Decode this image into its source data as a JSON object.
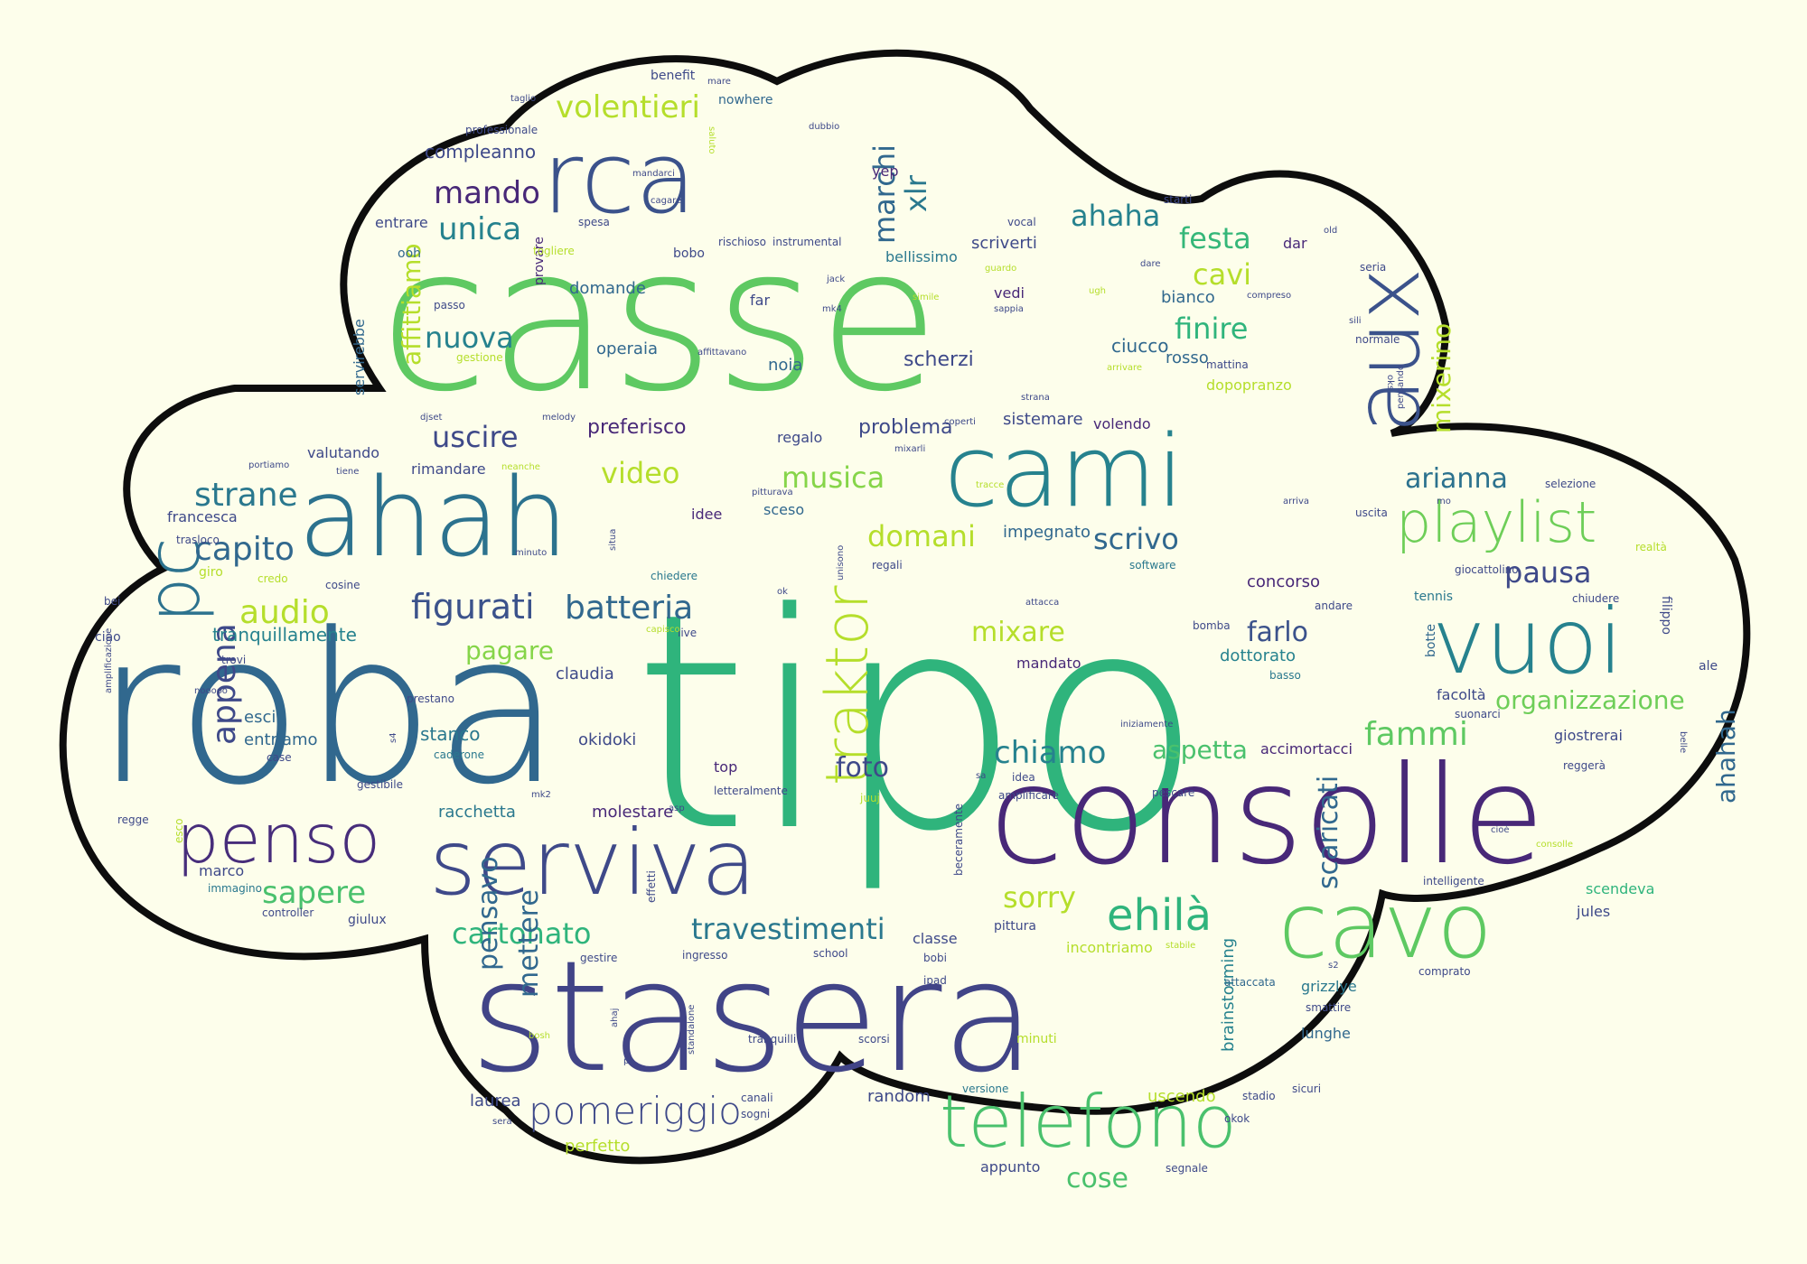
{
  "cloud": {
    "background": "#fdfeeb",
    "outline_color": "#0d0d0d",
    "palette": [
      "#31688e",
      "#35b779",
      "#6ece58",
      "#b5de2b",
      "#26828e",
      "#1f9e89",
      "#3e4989",
      "#482878",
      "#440154"
    ]
  },
  "words": [
    {
      "text": "tipo",
      "color": "#2fb47c"
    },
    {
      "text": "roba",
      "color": "#31688e"
    },
    {
      "text": "casse",
      "color": "#5ec962"
    },
    {
      "text": "stasera",
      "color": "#414487"
    },
    {
      "text": "consolle",
      "color": "#482878"
    },
    {
      "text": "serviva",
      "color": "#3e4989"
    },
    {
      "text": "ahah",
      "color": "#2c728e"
    },
    {
      "text": "rca",
      "color": "#3b528b"
    },
    {
      "text": "cami",
      "color": "#26828e"
    },
    {
      "text": "aux",
      "color": "#3b528b"
    },
    {
      "text": "vuoi",
      "color": "#26828e"
    },
    {
      "text": "cavo",
      "color": "#5ec962"
    },
    {
      "text": "telefono",
      "color": "#4ac16d"
    },
    {
      "text": "penso",
      "color": "#472d7b"
    },
    {
      "text": "pc",
      "color": "#2c728e"
    },
    {
      "text": "traktor",
      "color": "#b5de2b"
    },
    {
      "text": "playlist",
      "color": "#6ece58"
    },
    {
      "text": "pomeriggio",
      "color": "#3e4989"
    },
    {
      "text": "figurati",
      "color": "#3b528b"
    },
    {
      "text": "batteria",
      "color": "#31688e"
    },
    {
      "text": "capito",
      "color": "#31688e"
    },
    {
      "text": "strane",
      "color": "#2a788e"
    },
    {
      "text": "audio",
      "color": "#b5de2b"
    },
    {
      "text": "appena",
      "color": "#3e4989"
    },
    {
      "text": "sapere",
      "color": "#4ac16d"
    },
    {
      "text": "mando",
      "color": "#482878"
    },
    {
      "text": "unica",
      "color": "#26828e"
    },
    {
      "text": "volentieri",
      "color": "#b5de2b"
    },
    {
      "text": "marchi",
      "color": "#31688e"
    },
    {
      "text": "xlr",
      "color": "#2a788e"
    },
    {
      "text": "ahaha",
      "color": "#26828e"
    },
    {
      "text": "festa",
      "color": "#35b779"
    },
    {
      "text": "cavi",
      "color": "#b5de2b"
    },
    {
      "text": "finire",
      "color": "#2fb47c"
    },
    {
      "text": "nuova",
      "color": "#26828e"
    },
    {
      "text": "uscire",
      "color": "#3e4989"
    },
    {
      "text": "video",
      "color": "#b5de2b"
    },
    {
      "text": "musica",
      "color": "#86d549"
    },
    {
      "text": "domani",
      "color": "#b5de2b"
    },
    {
      "text": "scrivo",
      "color": "#31688e"
    },
    {
      "text": "arianna",
      "color": "#2c728e"
    },
    {
      "text": "pausa",
      "color": "#3e4989"
    },
    {
      "text": "mixerino",
      "color": "#b5de2b"
    },
    {
      "text": "affittiamo",
      "color": "#b5de2b"
    },
    {
      "text": "mixare",
      "color": "#b5de2b"
    },
    {
      "text": "farlo",
      "color": "#3b528b"
    },
    {
      "text": "chiamo",
      "color": "#26828e"
    },
    {
      "text": "aspetta",
      "color": "#4ac16d"
    },
    {
      "text": "fammi",
      "color": "#5ec962"
    },
    {
      "text": "organizzazione",
      "color": "#6ece58"
    },
    {
      "text": "ahahah",
      "color": "#31688e"
    },
    {
      "text": "foto",
      "color": "#3e4989"
    },
    {
      "text": "travestimenti",
      "color": "#2a788e"
    },
    {
      "text": "cartonato",
      "color": "#2fb47c"
    },
    {
      "text": "ehilà",
      "color": "#2fb47c"
    },
    {
      "text": "sorry",
      "color": "#b5de2b"
    },
    {
      "text": "scaricati",
      "color": "#31688e"
    },
    {
      "text": "pensavo",
      "color": "#31688e"
    },
    {
      "text": "mettere",
      "color": "#31688e"
    },
    {
      "text": "cose",
      "color": "#4ac16d"
    },
    {
      "text": "tranquillamente",
      "color": "#26828e"
    },
    {
      "text": "pagare",
      "color": "#86d549"
    },
    {
      "text": "problema",
      "color": "#3e4989"
    },
    {
      "text": "preferisco",
      "color": "#482878"
    },
    {
      "text": "scherzi",
      "color": "#3e4989"
    },
    {
      "text": "compleanno",
      "color": "#3e4989"
    },
    {
      "text": "ciucco",
      "color": "#31688e"
    },
    {
      "text": "rosso",
      "color": "#31688e"
    },
    {
      "text": "bianco",
      "color": "#31688e"
    },
    {
      "text": "concorso",
      "color": "#482878"
    },
    {
      "text": "dottorato",
      "color": "#26828e"
    },
    {
      "text": "stanco",
      "color": "#2a788e"
    },
    {
      "text": "okidoki",
      "color": "#3e4989"
    },
    {
      "text": "claudia",
      "color": "#3e4989"
    },
    {
      "text": "racchetta",
      "color": "#2a788e"
    },
    {
      "text": "molestare",
      "color": "#482878"
    },
    {
      "text": "laurea",
      "color": "#3e4989"
    },
    {
      "text": "perfetto",
      "color": "#b5de2b"
    },
    {
      "text": "appunto",
      "color": "#3e4989"
    },
    {
      "text": "random",
      "color": "#3e4989"
    },
    {
      "text": "uscendo",
      "color": "#b5de2b"
    },
    {
      "text": "brainstorming",
      "color": "#26828e"
    },
    {
      "text": "impegnato",
      "color": "#31688e"
    },
    {
      "text": "sistemare",
      "color": "#3e4989"
    },
    {
      "text": "volendo",
      "color": "#482878"
    },
    {
      "text": "operaia",
      "color": "#31688e"
    },
    {
      "text": "noia",
      "color": "#31688e"
    },
    {
      "text": "domande",
      "color": "#31688e"
    },
    {
      "text": "bellissimo",
      "color": "#2a788e"
    },
    {
      "text": "scriverti",
      "color": "#3e4989"
    },
    {
      "text": "dopopranzo",
      "color": "#b5de2b"
    },
    {
      "text": "valutando",
      "color": "#3e4989"
    },
    {
      "text": "rimandare",
      "color": "#3e4989"
    },
    {
      "text": "francesca",
      "color": "#3e4989"
    },
    {
      "text": "entrare",
      "color": "#3e4989"
    },
    {
      "text": "servirebbe",
      "color": "#31688e"
    },
    {
      "text": "esci",
      "color": "#31688e"
    },
    {
      "text": "entriamo",
      "color": "#31688e"
    },
    {
      "text": "marco",
      "color": "#3e4989"
    },
    {
      "text": "accimortacci",
      "color": "#482878"
    },
    {
      "text": "mandato",
      "color": "#482878"
    },
    {
      "text": "giostrerai",
      "color": "#3e4989"
    },
    {
      "text": "facoltà",
      "color": "#3e4989"
    },
    {
      "text": "scendeva",
      "color": "#2fb47c"
    },
    {
      "text": "jules",
      "color": "#3e4989"
    },
    {
      "text": "grizzlye",
      "color": "#2a788e"
    },
    {
      "text": "lunghe",
      "color": "#31688e"
    },
    {
      "text": "incontriamo",
      "color": "#b5de2b"
    },
    {
      "text": "pittura",
      "color": "#3e4989"
    },
    {
      "text": "classe",
      "color": "#3e4989"
    },
    {
      "text": "regalo",
      "color": "#3e4989"
    },
    {
      "text": "sceso",
      "color": "#31688e"
    },
    {
      "text": "idee",
      "color": "#482878"
    },
    {
      "text": "giro",
      "color": "#b5de2b"
    },
    {
      "text": "ciao",
      "color": "#3e4989"
    },
    {
      "text": "top",
      "color": "#482878"
    },
    {
      "text": "yep",
      "color": "#482878"
    },
    {
      "text": "vedi",
      "color": "#482878"
    },
    {
      "text": "far",
      "color": "#3e4989"
    },
    {
      "text": "dar",
      "color": "#482878"
    },
    {
      "text": "bobo",
      "color": "#3e4989"
    },
    {
      "text": "nowhere",
      "color": "#31688e"
    },
    {
      "text": "benefit",
      "color": "#3e4989"
    },
    {
      "text": "filippo",
      "color": "#3e4989"
    },
    {
      "text": "ale",
      "color": "#3e4989"
    },
    {
      "text": "botte",
      "color": "#31688e"
    },
    {
      "text": "stadio",
      "color": "#3e4989"
    },
    {
      "text": "versione",
      "color": "#2a788e"
    },
    {
      "text": "canali",
      "color": "#3e4989"
    },
    {
      "text": "sogni",
      "color": "#3e4989"
    },
    {
      "text": "minuti",
      "color": "#b5de2b"
    },
    {
      "text": "attaccata",
      "color": "#31688e"
    },
    {
      "text": "segnale",
      "color": "#3e4989"
    },
    {
      "text": "passo",
      "color": "#3e4989"
    },
    {
      "text": "provare",
      "color": "#482878"
    },
    {
      "text": "gestione",
      "color": "#b5de2b"
    },
    {
      "text": "ooh",
      "color": "#31688e"
    },
    {
      "text": "spesa",
      "color": "#3e4989"
    },
    {
      "text": "togliere",
      "color": "#b5de2b"
    },
    {
      "text": "rischioso",
      "color": "#3e4989"
    },
    {
      "text": "instrumental",
      "color": "#3e4989"
    },
    {
      "text": "vocal",
      "color": "#3e4989"
    },
    {
      "text": "starti",
      "color": "#3e4989"
    },
    {
      "text": "seria",
      "color": "#3e4989"
    },
    {
      "text": "normale",
      "color": "#3e4989"
    },
    {
      "text": "mattina",
      "color": "#3e4989"
    },
    {
      "text": "tennis",
      "color": "#2a788e"
    },
    {
      "text": "software",
      "color": "#2a788e"
    },
    {
      "text": "andare",
      "color": "#3e4989"
    },
    {
      "text": "chiudere",
      "color": "#3e4989"
    },
    {
      "text": "selezione",
      "color": "#3e4989"
    },
    {
      "text": "uscita",
      "color": "#3e4989"
    },
    {
      "text": "realtà",
      "color": "#b5de2b"
    },
    {
      "text": "giocattolino",
      "color": "#3e4989"
    },
    {
      "text": "basso",
      "color": "#2a788e"
    },
    {
      "text": "bomba",
      "color": "#3e4989"
    },
    {
      "text": "live",
      "color": "#3e4989"
    },
    {
      "text": "chiedere",
      "color": "#2a788e"
    },
    {
      "text": "credo",
      "color": "#b5de2b"
    },
    {
      "text": "trasloco",
      "color": "#3e4989"
    },
    {
      "text": "cosine",
      "color": "#3e4989"
    },
    {
      "text": "trovi",
      "color": "#3e4989"
    },
    {
      "text": "bei",
      "color": "#3e4989"
    },
    {
      "text": "prestano",
      "color": "#3e4989"
    },
    {
      "text": "caderone",
      "color": "#2a788e"
    },
    {
      "text": "case",
      "color": "#3e4989"
    },
    {
      "text": "immagino",
      "color": "#2a788e"
    },
    {
      "text": "controller",
      "color": "#3e4989"
    },
    {
      "text": "giulux",
      "color": "#3e4989"
    },
    {
      "text": "effetti",
      "color": "#3e4989"
    },
    {
      "text": "esco",
      "color": "#b5de2b"
    },
    {
      "text": "regge",
      "color": "#3e4989"
    },
    {
      "text": "gestibile",
      "color": "#3e4989"
    },
    {
      "text": "school",
      "color": "#3e4989"
    },
    {
      "text": "bobi",
      "color": "#3e4989"
    },
    {
      "text": "ipad",
      "color": "#3e4989"
    },
    {
      "text": "gestire",
      "color": "#3e4989"
    },
    {
      "text": "ingresso",
      "color": "#3e4989"
    },
    {
      "text": "tranquilli",
      "color": "#3e4989"
    },
    {
      "text": "scorsi",
      "color": "#3e4989"
    },
    {
      "text": "beceramente",
      "color": "#3e4989"
    },
    {
      "text": "idea",
      "color": "#3e4989"
    },
    {
      "text": "amplificare",
      "color": "#3e4989"
    },
    {
      "text": "pescare",
      "color": "#3e4989"
    },
    {
      "text": "intelligente",
      "color": "#3e4989"
    },
    {
      "text": "comprato",
      "color": "#3e4989"
    },
    {
      "text": "smattire",
      "color": "#3e4989"
    },
    {
      "text": "sicuri",
      "color": "#3e4989"
    },
    {
      "text": "okok",
      "color": "#3e4989"
    },
    {
      "text": "letteralmente",
      "color": "#3e4989"
    },
    {
      "text": "reggerà",
      "color": "#3e4989"
    },
    {
      "text": "iniziamente",
      "color": "#3e4989"
    },
    {
      "text": "suonarci",
      "color": "#3e4989"
    },
    {
      "text": "professionale",
      "color": "#3e4989"
    },
    {
      "text": "taglio",
      "color": "#3e4989"
    },
    {
      "text": "mare",
      "color": "#3e4989"
    },
    {
      "text": "dubbio",
      "color": "#3e4989"
    },
    {
      "text": "mandarci",
      "color": "#3e4989"
    },
    {
      "text": "cagare",
      "color": "#3e4989"
    },
    {
      "text": "jack",
      "color": "#3e4989"
    },
    {
      "text": "mk4",
      "color": "#3e4989"
    },
    {
      "text": "guardo",
      "color": "#b5de2b"
    },
    {
      "text": "sappia",
      "color": "#3e4989"
    },
    {
      "text": "compreso",
      "color": "#3e4989"
    },
    {
      "text": "ugh",
      "color": "#b5de2b"
    },
    {
      "text": "dare",
      "color": "#3e4989"
    },
    {
      "text": "melody",
      "color": "#3e4989"
    },
    {
      "text": "djset",
      "color": "#3e4989"
    },
    {
      "text": "neanche",
      "color": "#b5de2b"
    },
    {
      "text": "coperti",
      "color": "#3e4989"
    },
    {
      "text": "mixarli",
      "color": "#3e4989"
    },
    {
      "text": "strana",
      "color": "#3e4989"
    },
    {
      "text": "tracce",
      "color": "#b5de2b"
    },
    {
      "text": "arriva",
      "color": "#3e4989"
    },
    {
      "text": "pensando",
      "color": "#3e4989"
    },
    {
      "text": "attacca",
      "color": "#3e4989"
    },
    {
      "text": "unisono",
      "color": "#3e4989"
    },
    {
      "text": "regali",
      "color": "#3e4989"
    },
    {
      "text": "portiamo",
      "color": "#3e4989"
    },
    {
      "text": "tiene",
      "color": "#3e4989"
    },
    {
      "text": "situa",
      "color": "#3e4989"
    },
    {
      "text": "minuto",
      "color": "#3e4989"
    },
    {
      "text": "ok",
      "color": "#3e4989"
    },
    {
      "text": "capisco",
      "color": "#b5de2b"
    },
    {
      "text": "amplificazione",
      "color": "#3e4989"
    },
    {
      "text": "mo",
      "color": "#3e4989"
    },
    {
      "text": "belle",
      "color": "#3e4989"
    },
    {
      "text": "cioè",
      "color": "#3e4989"
    },
    {
      "text": "consolle",
      "color": "#b5de2b"
    },
    {
      "text": "saluto",
      "color": "#b5de2b"
    },
    {
      "text": "affittavano",
      "color": "#3e4989"
    },
    {
      "text": "sili",
      "color": "#3e4989"
    },
    {
      "text": "simile",
      "color": "#b5de2b"
    },
    {
      "text": "arrivare",
      "color": "#b5de2b"
    },
    {
      "text": "mk2",
      "color": "#3e4989"
    },
    {
      "text": "asp",
      "color": "#3e4989"
    },
    {
      "text": "juuj",
      "color": "#b5de2b"
    },
    {
      "text": "sa",
      "color": "#3e4989"
    },
    {
      "text": "s2",
      "color": "#3e4989"
    },
    {
      "text": "stabile",
      "color": "#b5de2b"
    },
    {
      "text": "ahaj",
      "color": "#3e4989"
    },
    {
      "text": "ps",
      "color": "#3e4989"
    },
    {
      "text": "standalone",
      "color": "#3e4989"
    },
    {
      "text": "bosh",
      "color": "#b5de2b"
    },
    {
      "text": "sera",
      "color": "#3e4989"
    },
    {
      "text": "pitturava",
      "color": "#3e4989"
    },
    {
      "text": "oks",
      "color": "#3e4989"
    },
    {
      "text": "old",
      "color": "#3e4989"
    },
    {
      "text": "nooooo",
      "color": "#3e4989"
    },
    {
      "text": "s4",
      "color": "#3e4989"
    },
    {
      "text": "vibealli",
      "color": "#3e4989"
    }
  ]
}
